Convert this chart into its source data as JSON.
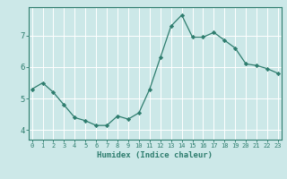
{
  "x": [
    0,
    1,
    2,
    3,
    4,
    5,
    6,
    7,
    8,
    9,
    10,
    11,
    12,
    13,
    14,
    15,
    16,
    17,
    18,
    19,
    20,
    21,
    22,
    23
  ],
  "y": [
    5.3,
    5.5,
    5.2,
    4.8,
    4.4,
    4.3,
    4.15,
    4.15,
    4.45,
    4.35,
    4.55,
    5.3,
    6.3,
    7.3,
    7.65,
    6.95,
    6.95,
    7.1,
    6.85,
    6.6,
    6.1,
    6.05,
    5.95,
    5.8
  ],
  "line_color": "#2e7d6e",
  "marker": "D",
  "marker_size": 2.2,
  "bg_color": "#cce8e8",
  "grid_color": "#ffffff",
  "xlabel": "Humidex (Indice chaleur)",
  "yticks": [
    4,
    5,
    6,
    7
  ],
  "xticks": [
    0,
    1,
    2,
    3,
    4,
    5,
    6,
    7,
    8,
    9,
    10,
    11,
    12,
    13,
    14,
    15,
    16,
    17,
    18,
    19,
    20,
    21,
    22,
    23
  ],
  "ylim": [
    3.7,
    7.9
  ],
  "xlim": [
    -0.3,
    23.3
  ],
  "xticklabels": [
    "0",
    "1",
    "2",
    "3",
    "4",
    "5",
    "6",
    "7",
    "8",
    "9",
    "10",
    "11",
    "12",
    "13",
    "14",
    "15",
    "16",
    "17",
    "18",
    "19",
    "20",
    "21",
    "22",
    "23"
  ],
  "axis_color": "#2e7d6e",
  "tick_color": "#2e7d6e",
  "label_color": "#2e7d6e"
}
